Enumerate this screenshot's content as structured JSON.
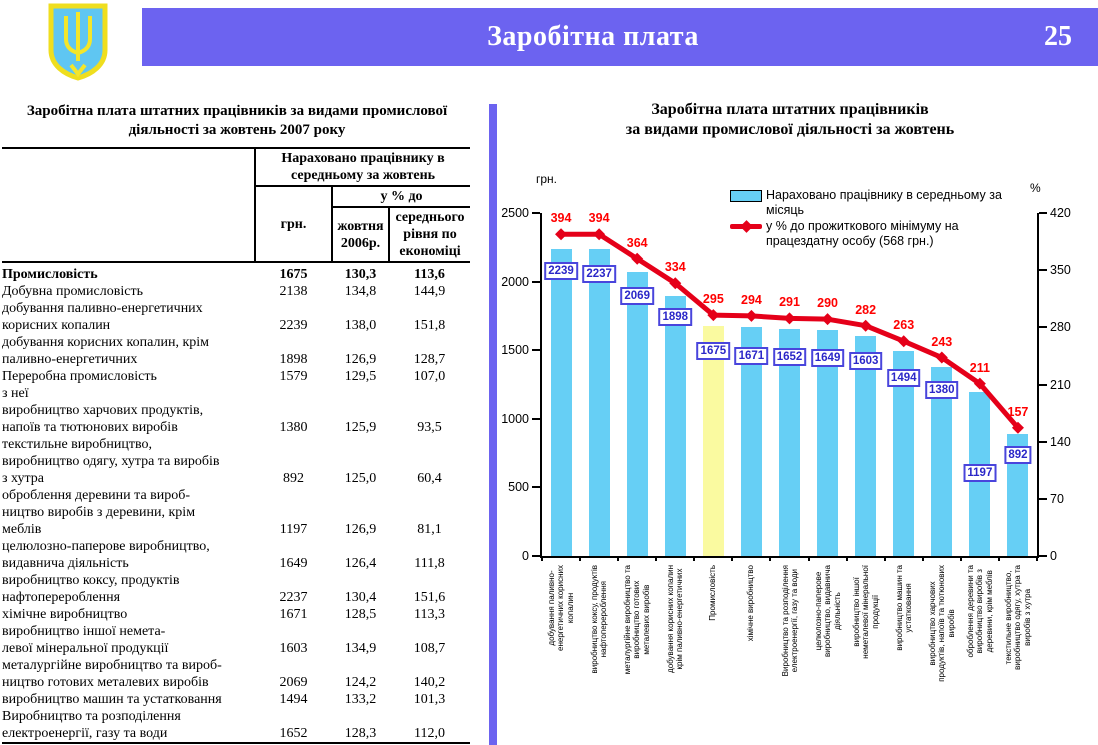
{
  "header": {
    "title": "Заробітна плата",
    "page_number": "25",
    "banner_color": "#6C63F0",
    "emblem_icon": "ukraine-trident-emblem"
  },
  "table_panel": {
    "title": "Заробітна плата штатних працівників за видами промислової\nдіяльності  за жовтень 2007 року",
    "col_headers": {
      "group": "Нараховано працівнику в\nсередньому за жовтень",
      "uah": "грн.",
      "pct_group": "у % до",
      "pct_prev_year": "жовтня\n2006р.",
      "pct_avg_economy": "середнього\nрівня по\nекономіці"
    },
    "rows": [
      {
        "label": "Промисловість",
        "uah": "1675",
        "pct1": "130,3",
        "pct2": "113,6",
        "bold": true,
        "indent": 0
      },
      {
        "label": "Добувна промисловість",
        "uah": "2138",
        "pct1": "134,8",
        "pct2": "144,9",
        "bold": false,
        "indent": 0
      },
      {
        "label": "добування паливно-енергетичних\nкорисних копалин",
        "uah": "2239",
        "pct1": "138,0",
        "pct2": "151,8",
        "bold": false,
        "indent": 1
      },
      {
        "label": "добування корисних копалин, крім\nпаливно-енергетичних",
        "uah": "1898",
        "pct1": "126,9",
        "pct2": "128,7",
        "bold": false,
        "indent": 1
      },
      {
        "label": "Переробна промисловість",
        "uah": "1579",
        "pct1": "129,5",
        "pct2": "107,0",
        "bold": false,
        "indent": 0
      },
      {
        "label": "з неї",
        "uah": "",
        "pct1": "",
        "pct2": "",
        "bold": false,
        "indent": 3
      },
      {
        "label": "виробництво харчових продуктів,\nнапоїв та тютюнових виробів",
        "uah": "1380",
        "pct1": "125,9",
        "pct2": "93,5",
        "bold": false,
        "indent": 1
      },
      {
        "label": "текстильне виробництво,\nвиробництво одягу, хутра та виробів\nз хутра",
        "uah": "892",
        "pct1": "125,0",
        "pct2": "60,4",
        "bold": false,
        "indent": 1
      },
      {
        "label": "оброблення деревини та вироб-\nництво виробів з деревини, крім\nмеблів",
        "uah": "1197",
        "pct1": "126,9",
        "pct2": "81,1",
        "bold": false,
        "indent": 1
      },
      {
        "label": "целюлозно-паперове виробництво,\nвидавнича діяльність",
        "uah": "1649",
        "pct1": "126,4",
        "pct2": "111,8",
        "bold": false,
        "indent": 1
      },
      {
        "label": "виробництво коксу, продуктів\nнафтоперероблення",
        "uah": "2237",
        "pct1": "130,4",
        "pct2": "151,6",
        "bold": false,
        "indent": 1
      },
      {
        "label": "хімічне виробництво",
        "uah": "1671",
        "pct1": "128,5",
        "pct2": "113,3",
        "bold": false,
        "indent": 2
      },
      {
        "label": "виробництво іншої немета-\nлевої мінеральної продукції",
        "uah": "1603",
        "pct1": "134,9",
        "pct2": "108,7",
        "bold": false,
        "indent": 2
      },
      {
        "label": "металургійне виробництво та вироб-\nництво готових металевих виробів",
        "uah": "2069",
        "pct1": "124,2",
        "pct2": "140,2",
        "bold": false,
        "indent": 1
      },
      {
        "label": "виробництво машин та устатковання",
        "uah": "1494",
        "pct1": "133,2",
        "pct2": "101,3",
        "bold": false,
        "indent": 1
      },
      {
        "label": "Виробництво та розподілення\nелектроенергії, газу та води",
        "uah": "1652",
        "pct1": "128,3",
        "pct2": "112,0",
        "bold": false,
        "indent": 0
      }
    ]
  },
  "chart": {
    "title_line1": "Заробітна плата штатних працівників",
    "title_line2": "за видами промислової діяльності за жовтень",
    "unit_left": "грн.",
    "unit_right": "%"
  },
  "chart_data": {
    "type": "bar",
    "title": "Заробітна плата штатних працівників за видами промислової діяльності за жовтень",
    "categories": [
      "добування паливно-\nенергетичних корисних\nкопалин",
      "виробництво коксу, продуктів\nнафтоперероблення",
      "металургійне виробництво та\nвиробництво готових\nметалевих виробів",
      "добування корисних копалин\nкрім паливно-енергетичних",
      "Промисловість",
      "хімічне виробництво",
      "Виробництво та розподілення\nелектроенергії, газу та води",
      "целюлозно-паперове\nвиробництво, видавнича\nдіяльність",
      "виробництво іншої\nнеметалевої мінеральної\nпродукції",
      "виробництво машин та\nустатковання",
      "виробництво харчових\nпродуктів, напоїв та тютюнових\nвиробів",
      "оброблення деревини та\nвиробництво виробів з\nдеревини, крім меблів",
      "текстильне виробництво,\nвиробництво одягу, хутра та\nвиробів з хутра"
    ],
    "series": [
      {
        "name": "Нараховано працівнику в середньому за місяць",
        "type": "bar",
        "axis": "left",
        "values": [
          2239,
          2237,
          2069,
          1898,
          1675,
          1671,
          1652,
          1649,
          1603,
          1494,
          1380,
          1197,
          892
        ]
      },
      {
        "name": "у % до прожиткового мінімуму на працездатну особу (568 грн.)",
        "type": "line",
        "axis": "right",
        "values": [
          394,
          394,
          364,
          334,
          295,
          294,
          291,
          290,
          282,
          263,
          243,
          211,
          157
        ]
      }
    ],
    "left_axis": {
      "label": "грн.",
      "min": 0,
      "max": 2500,
      "step": 500
    },
    "right_axis": {
      "label": "%",
      "min": 0,
      "max": 420,
      "step": 70
    },
    "highlight_index": 4,
    "legend_position": "top-right",
    "grid": false,
    "colors": {
      "bar": "#66CFF5",
      "bar_highlight": "#FAFAA0",
      "line": "#E50019",
      "bar_value_label": "#2B27C8",
      "line_value_label": "#FF0000"
    },
    "bar_label_offsets": [
      13,
      16,
      15,
      12,
      16,
      20,
      19,
      19,
      16,
      18,
      14,
      72,
      12
    ]
  }
}
